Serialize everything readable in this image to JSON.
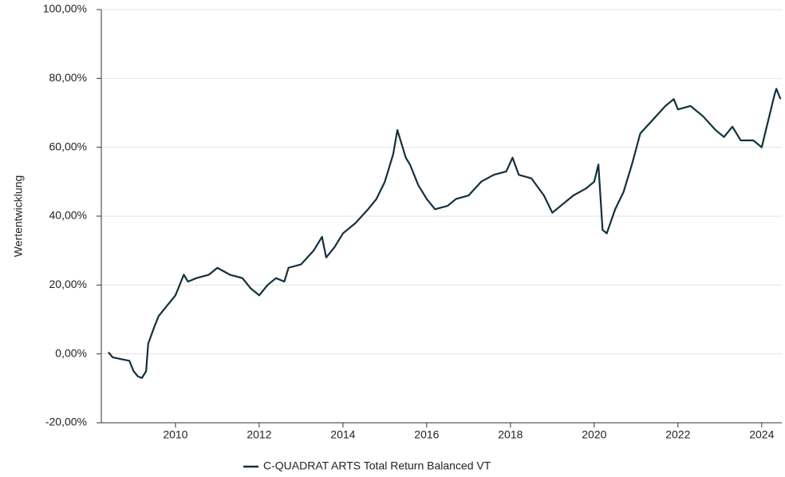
{
  "chart_data": {
    "type": "line",
    "ylabel": "Wertentwicklung",
    "x": [
      2008.4,
      2008.5,
      2008.7,
      2008.9,
      2009.0,
      2009.1,
      2009.2,
      2009.3,
      2009.35,
      2009.5,
      2009.6,
      2009.8,
      2010.0,
      2010.2,
      2010.3,
      2010.5,
      2010.8,
      2011.0,
      2011.3,
      2011.6,
      2011.8,
      2012.0,
      2012.2,
      2012.4,
      2012.6,
      2012.7,
      2013.0,
      2013.3,
      2013.5,
      2013.6,
      2013.8,
      2014.0,
      2014.3,
      2014.6,
      2014.8,
      2015.0,
      2015.2,
      2015.3,
      2015.5,
      2015.6,
      2015.8,
      2016.0,
      2016.2,
      2016.5,
      2016.7,
      2017.0,
      2017.3,
      2017.6,
      2017.9,
      2018.05,
      2018.2,
      2018.5,
      2018.8,
      2019.0,
      2019.2,
      2019.5,
      2019.8,
      2020.0,
      2020.1,
      2020.2,
      2020.3,
      2020.5,
      2020.7,
      2020.9,
      2021.1,
      2021.4,
      2021.7,
      2021.9,
      2022.0,
      2022.3,
      2022.6,
      2022.9,
      2023.1,
      2023.3,
      2023.5,
      2023.8,
      2024.0,
      2024.1,
      2024.3,
      2024.35,
      2024.45
    ],
    "series": [
      {
        "name": "C-QUADRAT ARTS Total Return Balanced VT",
        "color": "#12303f",
        "values": [
          0.5,
          -1,
          -1.5,
          -2,
          -5,
          -6.5,
          -7,
          -5,
          3,
          8,
          11,
          14,
          17,
          23,
          21,
          22,
          23,
          25,
          23,
          22,
          19,
          17,
          20,
          22,
          21,
          25,
          26,
          30,
          34,
          28,
          31,
          35,
          38,
          42,
          45,
          50,
          58,
          65,
          57,
          55,
          49,
          45,
          42,
          43,
          45,
          46,
          50,
          52,
          53,
          57,
          52,
          51,
          46,
          41,
          43,
          46,
          48,
          50,
          55,
          36,
          35,
          42,
          47,
          55,
          64,
          68,
          72,
          74,
          71,
          72,
          69,
          65,
          63,
          66,
          62,
          62,
          60,
          65,
          75,
          77,
          74
        ]
      }
    ],
    "xlim": [
      2008.23,
      2024.48
    ],
    "xticks": [
      2010,
      2012,
      2014,
      2016,
      2018,
      2020,
      2022,
      2024
    ],
    "ylim": [
      -20,
      100
    ],
    "yticks": [
      {
        "value": -20,
        "label": "-20,00%"
      },
      {
        "value": 0,
        "label": "0,00%"
      },
      {
        "value": 20,
        "label": "20,00%"
      },
      {
        "value": 40,
        "label": "40,00%"
      },
      {
        "value": 60,
        "label": "60,00%"
      },
      {
        "value": 80,
        "label": "80,00%"
      },
      {
        "value": 100,
        "label": "100,00%"
      }
    ],
    "grid": true
  }
}
